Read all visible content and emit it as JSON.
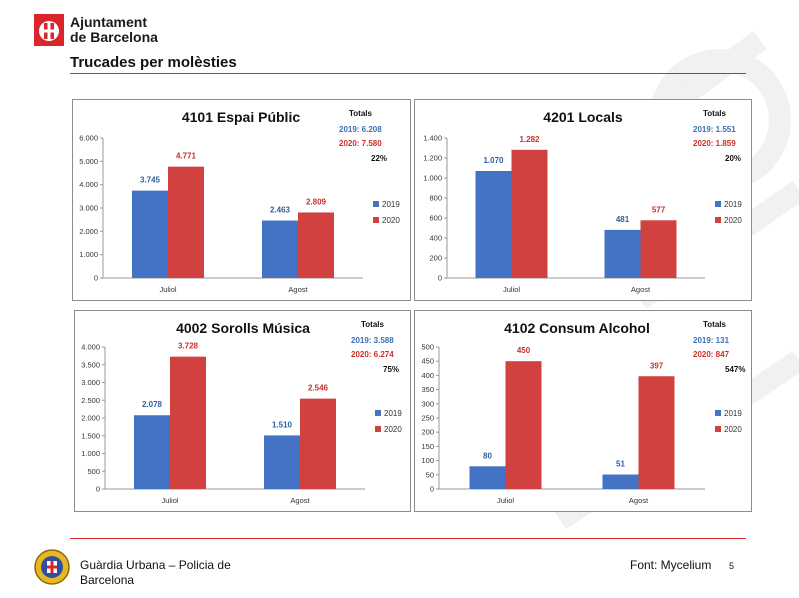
{
  "header": {
    "org_line1": "Ajuntament",
    "org_line2": "de Barcelona",
    "page_title": "Trucades per molèsties"
  },
  "footer": {
    "org_line1": "Guàrdia Urbana – Policia de",
    "org_line2": "Barcelona",
    "source": "Font: Mycelium",
    "page_number": "5"
  },
  "colors": {
    "series_2019": "#4472c4",
    "series_2020": "#d0413f",
    "accent": "#d9252b"
  },
  "chart_data": [
    {
      "type": "bar",
      "title": "4101 Espai Públic",
      "categories": [
        "Juliol",
        "Agost"
      ],
      "series": [
        {
          "name": "2019",
          "values": [
            3745,
            2463
          ],
          "labels": [
            "3.745",
            "2.463"
          ]
        },
        {
          "name": "2020",
          "values": [
            4771,
            2809
          ],
          "labels": [
            "4.771",
            "2.809"
          ]
        }
      ],
      "ylim": [
        0,
        6000
      ],
      "yticks": [
        0,
        1000,
        2000,
        3000,
        4000,
        5000,
        6000
      ],
      "ytick_labels": [
        "0",
        "1.000",
        "2.000",
        "3.000",
        "4.000",
        "5.000",
        "6.000"
      ],
      "totals": {
        "heading": "Totals",
        "y2019": "2019:  6.208",
        "y2020": "2020:  7.580",
        "change": "22%"
      },
      "legend": "right"
    },
    {
      "type": "bar",
      "title": "4201 Locals",
      "categories": [
        "Juliol",
        "Agost"
      ],
      "series": [
        {
          "name": "2019",
          "values": [
            1070,
            481
          ],
          "labels": [
            "1.070",
            "481"
          ]
        },
        {
          "name": "2020",
          "values": [
            1282,
            577
          ],
          "labels": [
            "1.282",
            "577"
          ]
        }
      ],
      "ylim": [
        0,
        1400
      ],
      "yticks": [
        0,
        200,
        400,
        600,
        800,
        1000,
        1200,
        1400
      ],
      "ytick_labels": [
        "0",
        "200",
        "400",
        "600",
        "800",
        "1.000",
        "1.200",
        "1.400"
      ],
      "totals": {
        "heading": "Totals",
        "y2019": "2019:   1.551",
        "y2020": "2020:   1.859",
        "change": "20%"
      },
      "legend": "right"
    },
    {
      "type": "bar",
      "title": "4002 Sorolls Música",
      "categories": [
        "Juliol",
        "Agost"
      ],
      "series": [
        {
          "name": "2019",
          "values": [
            2078,
            1510
          ],
          "labels": [
            "2.078",
            "1.510"
          ]
        },
        {
          "name": "2020",
          "values": [
            3728,
            2546
          ],
          "labels": [
            "3.728",
            "2.546"
          ]
        }
      ],
      "ylim": [
        0,
        4000
      ],
      "yticks": [
        0,
        500,
        1000,
        1500,
        2000,
        2500,
        3000,
        3500,
        4000
      ],
      "ytick_labels": [
        "0",
        "500",
        "1.000",
        "1.500",
        "2.000",
        "2.500",
        "3.000",
        "3.500",
        "4.000"
      ],
      "totals": {
        "heading": "Totals",
        "y2019": "2019:  3.588",
        "y2020": "2020:  6.274",
        "change": "75%"
      },
      "legend": "right"
    },
    {
      "type": "bar",
      "title": "4102 Consum Alcohol",
      "categories": [
        "Juliol",
        "Agost"
      ],
      "series": [
        {
          "name": "2019",
          "values": [
            80,
            51
          ],
          "labels": [
            "80",
            "51"
          ]
        },
        {
          "name": "2020",
          "values": [
            450,
            397
          ],
          "labels": [
            "450",
            "397"
          ]
        }
      ],
      "ylim": [
        0,
        500
      ],
      "yticks": [
        0,
        50,
        100,
        150,
        200,
        250,
        300,
        350,
        400,
        450,
        500
      ],
      "ytick_labels": [
        "0",
        "50",
        "100",
        "150",
        "200",
        "250",
        "300",
        "350",
        "400",
        "450",
        "500"
      ],
      "totals": {
        "heading": "Totals",
        "y2019": "2019:       131",
        "y2020": "2020:       847",
        "change": "547%"
      },
      "legend": "right"
    }
  ]
}
